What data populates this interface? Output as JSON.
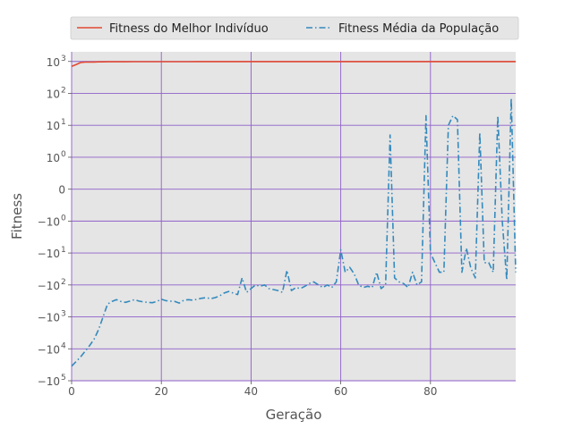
{
  "chart_data": {
    "type": "line",
    "xlabel": "Geração",
    "ylabel": "Fitness",
    "xlim": [
      0,
      99
    ],
    "x_ticks": [
      0,
      20,
      40,
      60,
      80
    ],
    "y_scale": "symlog",
    "ylim": [
      -100000,
      2000
    ],
    "y_ticks": [
      {
        "value": 1000,
        "base": "10",
        "exp": "3"
      },
      {
        "value": 100,
        "base": "10",
        "exp": "2"
      },
      {
        "value": 10,
        "base": "10",
        "exp": "1"
      },
      {
        "value": 1,
        "base": "10",
        "exp": "0"
      },
      {
        "value": 0,
        "base": "0",
        "exp": ""
      },
      {
        "value": -1,
        "base": "−10",
        "exp": "0"
      },
      {
        "value": -10,
        "base": "−10",
        "exp": "1"
      },
      {
        "value": -100,
        "base": "−10",
        "exp": "2"
      },
      {
        "value": -1000,
        "base": "−10",
        "exp": "3"
      },
      {
        "value": -10000,
        "base": "−10",
        "exp": "4"
      },
      {
        "value": -100000,
        "base": "−10",
        "exp": "5"
      }
    ],
    "grid": true,
    "legend_position": "top",
    "series": [
      {
        "name": "Fitness do Melhor Indivíduo",
        "color": "#E24A33",
        "style": "solid",
        "x": [
          0,
          1,
          2,
          3,
          4,
          5,
          6,
          7,
          8,
          9,
          10,
          12,
          14,
          16,
          18,
          20,
          22,
          24,
          26,
          28,
          30,
          32,
          34,
          36,
          38,
          40,
          42,
          44,
          46,
          48,
          50,
          52,
          54,
          56,
          58,
          60,
          62,
          64,
          66,
          68,
          70,
          72,
          74,
          76,
          78,
          80,
          82,
          84,
          86,
          88,
          90,
          92,
          94,
          96,
          98,
          99
        ],
        "values": [
          700,
          800,
          920,
          950,
          950,
          960,
          970,
          970,
          975,
          980,
          980,
          980,
          985,
          985,
          985,
          985,
          985,
          985,
          985,
          990,
          990,
          990,
          990,
          990,
          990,
          990,
          990,
          990,
          990,
          990,
          990,
          990,
          990,
          990,
          990,
          990,
          990,
          990,
          990,
          990,
          990,
          990,
          990,
          990,
          990,
          990,
          990,
          990,
          990,
          990,
          990,
          990,
          990,
          990,
          990,
          990
        ]
      },
      {
        "name": "Fitness Média da População",
        "color": "#348ABD",
        "style": "dashdot",
        "x": [
          0,
          1,
          2,
          3,
          4,
          5,
          6,
          7,
          8,
          9,
          10,
          11,
          12,
          13,
          14,
          15,
          16,
          17,
          18,
          19,
          20,
          21,
          22,
          23,
          24,
          25,
          26,
          27,
          28,
          29,
          30,
          31,
          32,
          33,
          34,
          35,
          36,
          37,
          38,
          39,
          40,
          41,
          42,
          43,
          44,
          45,
          46,
          47,
          48,
          49,
          50,
          51,
          52,
          53,
          54,
          55,
          56,
          57,
          58,
          59,
          60,
          61,
          62,
          63,
          64,
          65,
          66,
          67,
          68,
          69,
          70,
          71,
          72,
          73,
          74,
          75,
          76,
          77,
          78,
          79,
          80,
          81,
          82,
          83,
          84,
          85,
          86,
          87,
          88,
          89,
          90,
          91,
          92,
          93,
          94,
          95,
          96,
          97,
          98,
          99
        ],
        "values": [
          -35000,
          -25000,
          -18000,
          -12000,
          -8000,
          -5000,
          -2500,
          -1000,
          -400,
          -330,
          -290,
          -330,
          -350,
          -320,
          -290,
          -320,
          -340,
          -350,
          -360,
          -330,
          -280,
          -310,
          -320,
          -330,
          -370,
          -300,
          -290,
          -300,
          -280,
          -260,
          -250,
          -270,
          -250,
          -220,
          -180,
          -160,
          -180,
          -200,
          -60,
          -170,
          -130,
          -100,
          -110,
          -100,
          -130,
          -140,
          -150,
          -170,
          -35,
          -150,
          -120,
          -130,
          -110,
          -90,
          -80,
          -100,
          -120,
          -100,
          -120,
          -80,
          -8,
          -40,
          -28,
          -45,
          -100,
          -120,
          -110,
          -120,
          -40,
          -130,
          -100,
          5,
          -60,
          -80,
          -90,
          -120,
          -40,
          -100,
          -80,
          20,
          -10,
          -20,
          -40,
          -40,
          10,
          20,
          15,
          -40,
          -7,
          -30,
          -60,
          6,
          -20,
          -20,
          -40,
          20,
          -1,
          -70,
          70,
          -40
        ]
      }
    ]
  }
}
